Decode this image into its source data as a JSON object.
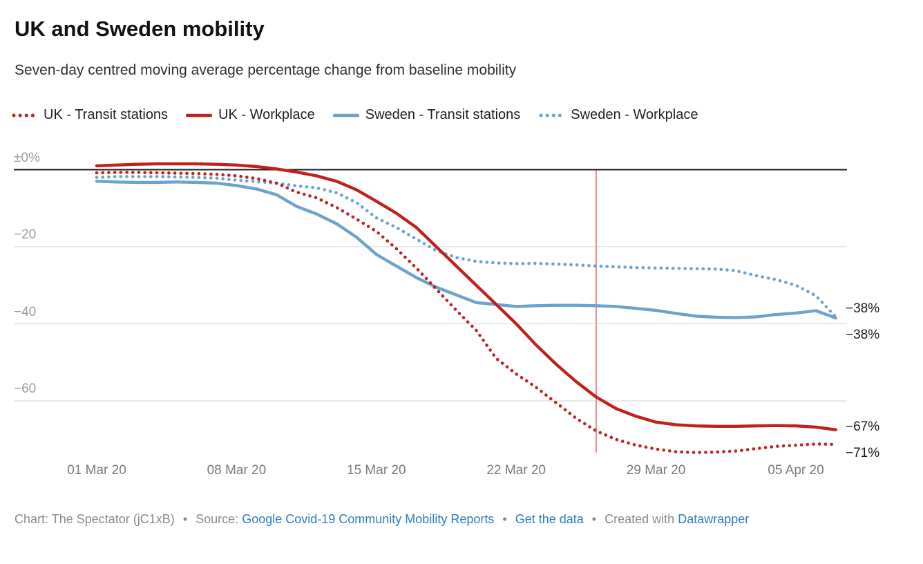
{
  "header": {
    "title": "UK and Sweden mobility",
    "subtitle": "Seven-day centred moving average percentage change from baseline mobility"
  },
  "legend": {
    "items": [
      {
        "label": "UK - Transit stations",
        "color": "#c0211e",
        "line_style": "dotted"
      },
      {
        "label": "UK - Workplace",
        "color": "#c0211e",
        "line_style": "solid"
      },
      {
        "label": "Sweden - Transit stations",
        "color": "#6ba3cd",
        "line_style": "solid"
      },
      {
        "label": "Sweden - Workplace",
        "color": "#6ba3cd",
        "line_style": "dotted"
      }
    ]
  },
  "chart_data": {
    "type": "line",
    "title": "UK and Sweden mobility",
    "subtitle": "Seven-day centred moving average percentage change from baseline mobility",
    "ylabel": "% change from baseline mobility",
    "ylim": [
      -74.5,
      2.5
    ],
    "grid": "horizontal",
    "legend_position": "top",
    "x": [
      "01 Mar 20",
      "02 Mar 20",
      "03 Mar 20",
      "04 Mar 20",
      "05 Mar 20",
      "06 Mar 20",
      "07 Mar 20",
      "08 Mar 20",
      "09 Mar 20",
      "10 Mar 20",
      "11 Mar 20",
      "12 Mar 20",
      "13 Mar 20",
      "14 Mar 20",
      "15 Mar 20",
      "16 Mar 20",
      "17 Mar 20",
      "18 Mar 20",
      "19 Mar 20",
      "20 Mar 20",
      "21 Mar 20",
      "22 Mar 20",
      "23 Mar 20",
      "24 Mar 20",
      "25 Mar 20",
      "26 Mar 20",
      "27 Mar 20",
      "28 Mar 20",
      "29 Mar 20",
      "30 Mar 20",
      "31 Mar 20",
      "01 Apr 20",
      "02 Apr 20",
      "03 Apr 20",
      "04 Apr 20",
      "05 Apr 20",
      "06 Apr 20",
      "07 Apr 20"
    ],
    "x_tick_labels": [
      "01 Mar 20",
      "08 Mar 20",
      "15 Mar 20",
      "22 Mar 20",
      "29 Mar 20",
      "05 Apr 20"
    ],
    "y_ticks": [
      {
        "value": 0,
        "label": "±0%"
      },
      {
        "value": -20,
        "label": "−20"
      },
      {
        "value": -40,
        "label": "−40"
      },
      {
        "value": -60,
        "label": "−60"
      }
    ],
    "series": [
      {
        "name": "UK - Transit stations",
        "color": "#c0211e",
        "style": "dotted",
        "end_label": "−71%",
        "values": [
          -0.8,
          -0.7,
          -0.7,
          -0.8,
          -0.9,
          -1,
          -1.2,
          -1.6,
          -2.3,
          -3.5,
          -5.8,
          -7.3,
          -9.8,
          -12.8,
          -16,
          -20.5,
          -25.5,
          -31,
          -36.5,
          -41.7,
          -49,
          -53,
          -56.5,
          -60.5,
          -64.5,
          -67.8,
          -70,
          -71.5,
          -72.5,
          -73.2,
          -73.4,
          -73.3,
          -73,
          -72.4,
          -71.8,
          -71.5,
          -71.2,
          -71.3
        ]
      },
      {
        "name": "UK - Workplace",
        "color": "#c0211e",
        "style": "solid",
        "end_label": "−67%",
        "values": [
          1,
          1.2,
          1.4,
          1.5,
          1.5,
          1.5,
          1.4,
          1.2,
          0.8,
          0.2,
          -0.6,
          -1.6,
          -3,
          -5.2,
          -8.2,
          -11.3,
          -15,
          -20,
          -25,
          -30,
          -35,
          -40,
          -45.5,
          -50.5,
          -55,
          -59,
          -62,
          -64,
          -65.5,
          -66.2,
          -66.5,
          -66.6,
          -66.6,
          -66.5,
          -66.4,
          -66.5,
          -66.8,
          -67.5
        ]
      },
      {
        "name": "Sweden - Transit stations",
        "color": "#6ba3cd",
        "style": "solid",
        "end_label": "−38%",
        "values": [
          -3,
          -3.2,
          -3.3,
          -3.3,
          -3.2,
          -3.3,
          -3.5,
          -4.1,
          -5,
          -6.5,
          -9.5,
          -11.5,
          -14,
          -17.5,
          -22,
          -25,
          -28,
          -30.5,
          -32.5,
          -34.5,
          -35,
          -35.5,
          -35.3,
          -35.2,
          -35.2,
          -35.3,
          -35.5,
          -36,
          -36.5,
          -37.3,
          -38,
          -38.3,
          -38.4,
          -38.2,
          -37.6,
          -37.2,
          -36.6,
          -38.5
        ]
      },
      {
        "name": "Sweden - Workplace",
        "color": "#6ba3cd",
        "style": "dotted",
        "end_label": "−38%",
        "values": [
          -2,
          -1.8,
          -1.8,
          -1.8,
          -1.9,
          -2,
          -2.2,
          -2.7,
          -3.1,
          -3.5,
          -4.2,
          -4.7,
          -6,
          -8.5,
          -12.5,
          -15,
          -18,
          -21,
          -22.8,
          -23.8,
          -24.2,
          -24.4,
          -24.3,
          -24.5,
          -24.7,
          -25,
          -25.2,
          -25.4,
          -25.5,
          -25.6,
          -25.7,
          -25.8,
          -26.2,
          -27.5,
          -28.5,
          -30,
          -32.7,
          -38.2
        ]
      }
    ],
    "annotations": {
      "vertical_line": {
        "date": "26 Mar 20",
        "color": "#e08a8a"
      }
    }
  },
  "colors": {
    "uk": "#c0211e",
    "sweden": "#6ba3cd",
    "baseline": "#1a1a1a",
    "gridline": "#e2e2e2",
    "annotation_line": "#e08a8a",
    "footer_link": "#2d7cc3"
  },
  "footer": {
    "credit_label": "Chart:",
    "credit": "The Spectator (jC1xB)",
    "bullet": "•",
    "source_label": "Source:",
    "source_link": "Google Covid-19 Community Mobility Reports",
    "get_data_link": "Get the data",
    "created_with": "Created with",
    "tool_link": "Datawrapper"
  }
}
